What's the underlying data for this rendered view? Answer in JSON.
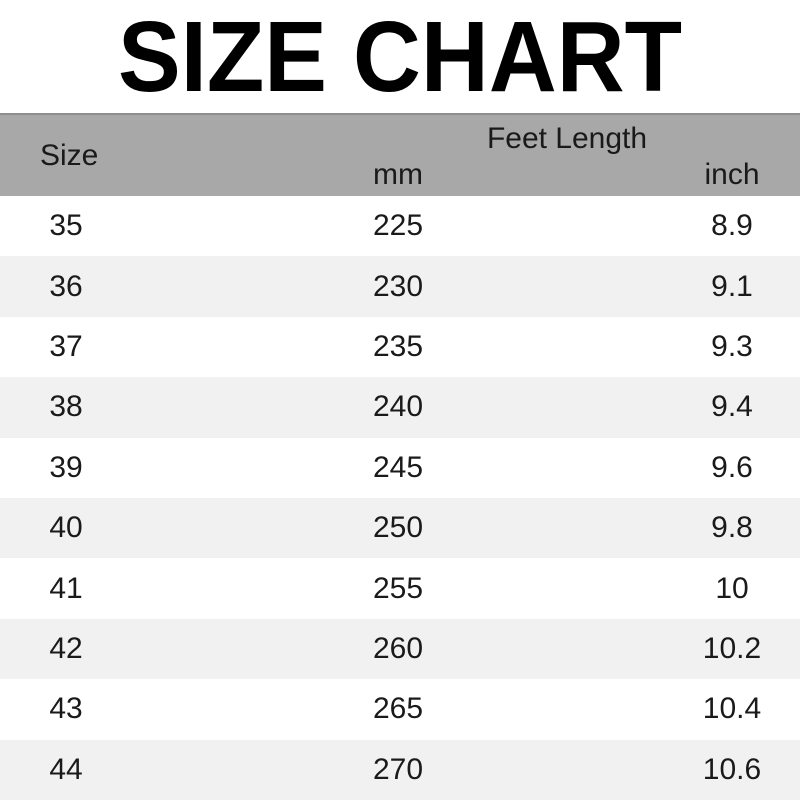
{
  "title": "SIZE CHART",
  "table": {
    "size_header": "Size",
    "group_header": "Feet Length",
    "mm_header": "mm",
    "inch_header": "inch",
    "rows": [
      {
        "size": "35",
        "mm": "225",
        "inch": "8.9"
      },
      {
        "size": "36",
        "mm": "230",
        "inch": "9.1"
      },
      {
        "size": "37",
        "mm": "235",
        "inch": "9.3"
      },
      {
        "size": "38",
        "mm": "240",
        "inch": "9.4"
      },
      {
        "size": "39",
        "mm": "245",
        "inch": "9.6"
      },
      {
        "size": "40",
        "mm": "250",
        "inch": "9.8"
      },
      {
        "size": "41",
        "mm": "255",
        "inch": "10"
      },
      {
        "size": "42",
        "mm": "260",
        "inch": "10.2"
      },
      {
        "size": "43",
        "mm": "265",
        "inch": "10.4"
      },
      {
        "size": "44",
        "mm": "270",
        "inch": "10.6"
      }
    ]
  },
  "colors": {
    "header_bg": "#a8a8a8",
    "stripe_bg": "#f1f1f1",
    "row_bg": "#ffffff",
    "text": "#1a1a1a",
    "title_text": "#000000",
    "header_border": "#8e8e8e"
  },
  "chart_data": {
    "type": "table",
    "title": "SIZE CHART",
    "columns": [
      "Size",
      "Feet Length mm",
      "Feet Length inch"
    ],
    "rows": [
      [
        35,
        225,
        8.9
      ],
      [
        36,
        230,
        9.1
      ],
      [
        37,
        235,
        9.3
      ],
      [
        38,
        240,
        9.4
      ],
      [
        39,
        245,
        9.6
      ],
      [
        40,
        250,
        9.8
      ],
      [
        41,
        255,
        10
      ],
      [
        42,
        260,
        10.2
      ],
      [
        43,
        265,
        10.4
      ],
      [
        44,
        270,
        10.6
      ]
    ]
  }
}
